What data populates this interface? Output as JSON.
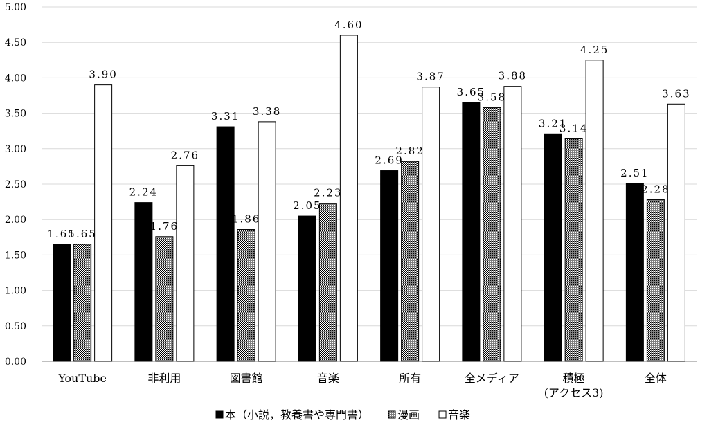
{
  "chart_data": {
    "type": "bar",
    "categories": [
      "YouTube",
      "非利用",
      "図書館",
      "音楽",
      "所有",
      "全メディア",
      "積極\n(アクセス3)",
      "全体"
    ],
    "series": [
      {
        "name": "本（小説，教養書や専門書）",
        "values": [
          1.65,
          2.24,
          3.31,
          2.05,
          2.69,
          3.65,
          3.21,
          2.51
        ],
        "fill": "#000000"
      },
      {
        "name": "漫画",
        "values": [
          1.65,
          1.76,
          1.86,
          2.23,
          2.82,
          3.58,
          3.14,
          2.28
        ],
        "fill": "pattern"
      },
      {
        "name": "音楽",
        "values": [
          3.9,
          2.76,
          3.38,
          4.6,
          3.87,
          3.88,
          4.25,
          3.63
        ],
        "fill": "#ffffff"
      }
    ],
    "data_labels": [
      [
        "1.65",
        "2.24",
        "3.31",
        "2.05",
        "2.69",
        "3.65",
        "3.21",
        "2.51"
      ],
      [
        "1.65",
        "1.76",
        "1.86",
        "2.23",
        "2.82",
        "3.58",
        "3.14",
        "2.28"
      ],
      [
        "3.90",
        "2.76",
        "3.38",
        "4.60",
        "3.87",
        "3.88",
        "4.25",
        "3.63"
      ]
    ],
    "y_ticks": [
      "0.00",
      "0.50",
      "1.00",
      "1.50",
      "2.00",
      "2.50",
      "3.00",
      "3.50",
      "4.00",
      "4.50",
      "5.00"
    ],
    "ylim": [
      0,
      5
    ],
    "grid": true,
    "legend_position": "bottom"
  }
}
